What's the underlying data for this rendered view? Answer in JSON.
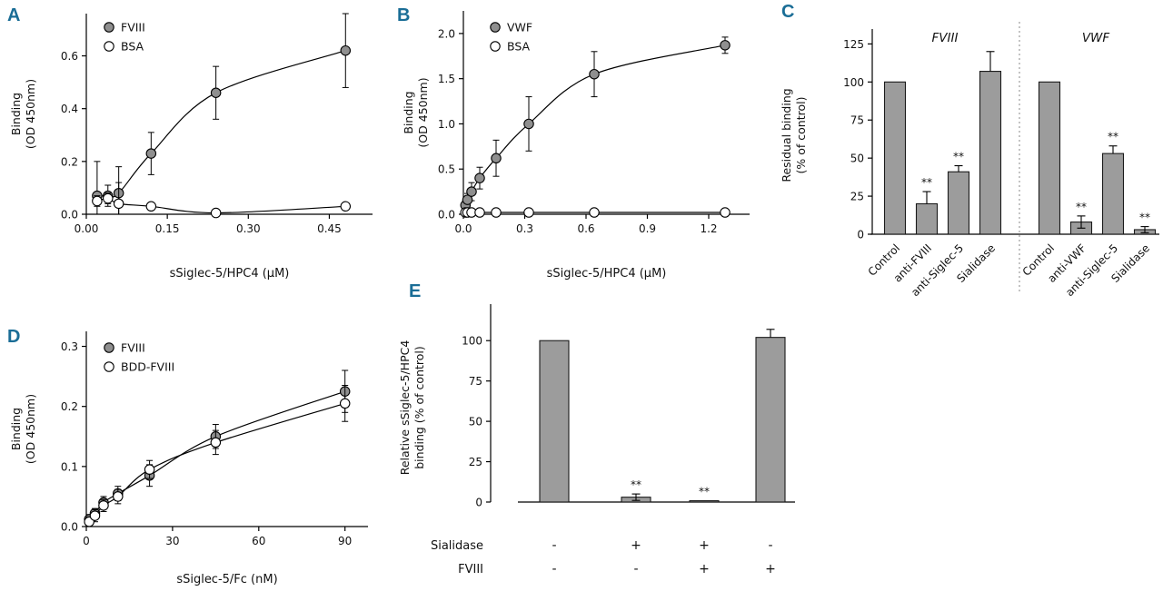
{
  "colors": {
    "accent": "#1a6d96",
    "bar": "#9c9c9c",
    "marker": "#8f8f8f"
  },
  "chart_data": [
    {
      "id": "A",
      "label": "A",
      "type": "line",
      "xlabel": "sSiglec-5/HPC4 (μM)",
      "ylabel": [
        "Binding",
        "(OD 450nm)"
      ],
      "xlim": [
        0,
        0.53
      ],
      "ylim": [
        0,
        0.76
      ],
      "xticks": [
        "0.00",
        "0.15",
        "0.30",
        "0.45"
      ],
      "xtick_vals": [
        0,
        0.15,
        0.3,
        0.45
      ],
      "yticks": [
        "0.0",
        "0.2",
        "0.4",
        "0.6"
      ],
      "ytick_vals": [
        0,
        0.2,
        0.4,
        0.6
      ],
      "series": [
        {
          "name": "FVIII",
          "marker": "filled",
          "x": [
            0.02,
            0.04,
            0.06,
            0.12,
            0.24,
            0.48
          ],
          "y": [
            0.07,
            0.07,
            0.08,
            0.23,
            0.46,
            0.62
          ],
          "err": [
            0.13,
            0.04,
            0.1,
            0.08,
            0.1,
            0.14
          ]
        },
        {
          "name": "BSA",
          "marker": "open",
          "x": [
            0.02,
            0.04,
            0.06,
            0.12,
            0.24,
            0.48
          ],
          "y": [
            0.05,
            0.06,
            0.04,
            0.03,
            0.005,
            0.03
          ],
          "err": [
            0.02,
            0.02,
            0.08,
            0.01,
            0.005,
            0.01
          ]
        }
      ]
    },
    {
      "id": "B",
      "label": "B",
      "type": "line",
      "xlabel": "sSiglec-5/HPC4 (μM)",
      "ylabel": [
        "Binding",
        "(OD 450nm)"
      ],
      "xlim": [
        0,
        1.4
      ],
      "ylim": [
        0,
        2.25
      ],
      "xticks": [
        "0.0",
        "0.3",
        "0.6",
        "0.9",
        "1.2"
      ],
      "xtick_vals": [
        0,
        0.3,
        0.6,
        0.9,
        1.2
      ],
      "yticks": [
        "0.0",
        "0.5",
        "1.0",
        "1.5",
        "2.0"
      ],
      "ytick_vals": [
        0,
        0.5,
        1,
        1.5,
        2
      ],
      "series": [
        {
          "name": "VWF",
          "marker": "filled",
          "x": [
            0.01,
            0.02,
            0.04,
            0.08,
            0.16,
            0.32,
            0.64,
            1.28
          ],
          "y": [
            0.1,
            0.16,
            0.25,
            0.4,
            0.62,
            1.0,
            1.55,
            1.87
          ],
          "err": [
            0.05,
            0.07,
            0.1,
            0.12,
            0.2,
            0.3,
            0.25,
            0.09
          ]
        },
        {
          "name": "BSA",
          "marker": "open",
          "x": [
            0.01,
            0.02,
            0.04,
            0.08,
            0.16,
            0.32,
            0.64,
            1.28
          ],
          "y": [
            0.02,
            0.02,
            0.02,
            0.02,
            0.02,
            0.02,
            0.02,
            0.02
          ],
          "err": [
            0.01,
            0.01,
            0.01,
            0.01,
            0.01,
            0.01,
            0.01,
            0.01
          ]
        }
      ]
    },
    {
      "id": "C",
      "label": "C",
      "type": "grouped-bar",
      "ylabel": [
        "Residual binding",
        "(% of control)"
      ],
      "ylim": [
        0,
        130
      ],
      "yticks": [
        "0",
        "25",
        "50",
        "75",
        "100",
        "125"
      ],
      "ytick_vals": [
        0,
        25,
        50,
        75,
        100,
        125
      ],
      "groups": [
        {
          "title": "FVIII",
          "categories": [
            "Control",
            "anti-FVIII",
            "anti-Siglec-5",
            "Sialidase"
          ],
          "values": [
            100,
            20,
            41,
            107
          ],
          "errors": [
            0,
            8,
            4,
            13
          ],
          "sig": [
            "",
            "**",
            "**",
            ""
          ]
        },
        {
          "title": "VWF",
          "categories": [
            "Control",
            "anti-VWF",
            "anti-Siglec-5",
            "Sialidase"
          ],
          "values": [
            100,
            8,
            53,
            3
          ],
          "errors": [
            0,
            4,
            5,
            2
          ],
          "sig": [
            "",
            "**",
            "**",
            "**"
          ]
        }
      ]
    },
    {
      "id": "D",
      "label": "D",
      "type": "line",
      "xlabel": "sSiglec-5/Fc (nM)",
      "ylabel": [
        "Binding",
        "(OD 450nm)"
      ],
      "xlim": [
        0,
        98
      ],
      "ylim": [
        0,
        0.325
      ],
      "xticks": [
        "0",
        "30",
        "60",
        "90"
      ],
      "xtick_vals": [
        0,
        30,
        60,
        90
      ],
      "yticks": [
        "0.0",
        "0.1",
        "0.2",
        "0.3"
      ],
      "ytick_vals": [
        0,
        0.1,
        0.2,
        0.3
      ],
      "series": [
        {
          "name": "FVIII",
          "marker": "filled",
          "x": [
            1,
            3,
            6,
            11,
            22,
            45,
            90
          ],
          "y": [
            0.012,
            0.022,
            0.04,
            0.055,
            0.085,
            0.15,
            0.225
          ],
          "err": [
            0.008,
            0.008,
            0.01,
            0.012,
            0.018,
            0.02,
            0.035
          ]
        },
        {
          "name": "BDD-FVIII",
          "marker": "open",
          "x": [
            1,
            3,
            6,
            11,
            22,
            45,
            90
          ],
          "y": [
            0.008,
            0.018,
            0.035,
            0.05,
            0.095,
            0.14,
            0.205
          ],
          "err": [
            0.008,
            0.01,
            0.01,
            0.012,
            0.015,
            0.02,
            0.03
          ]
        }
      ]
    },
    {
      "id": "E",
      "label": "E",
      "type": "bar-matrix",
      "ylabel": [
        "Relative sSiglec-5/HPC4",
        "binding (% of control)"
      ],
      "ylim": [
        0,
        117
      ],
      "yticks": [
        "0",
        "25",
        "50",
        "75",
        "100"
      ],
      "ytick_vals": [
        0,
        25,
        50,
        75,
        100
      ],
      "values": [
        100,
        3,
        0.8,
        102
      ],
      "errors": [
        0,
        2,
        0,
        5
      ],
      "sig": [
        "",
        "**",
        "**",
        ""
      ],
      "matrix": [
        {
          "row_label": "Sialidase",
          "signs": [
            "-",
            "+",
            "+",
            "-"
          ]
        },
        {
          "row_label": "FVIII",
          "signs": [
            "-",
            "-",
            "+",
            "+"
          ]
        }
      ]
    }
  ]
}
